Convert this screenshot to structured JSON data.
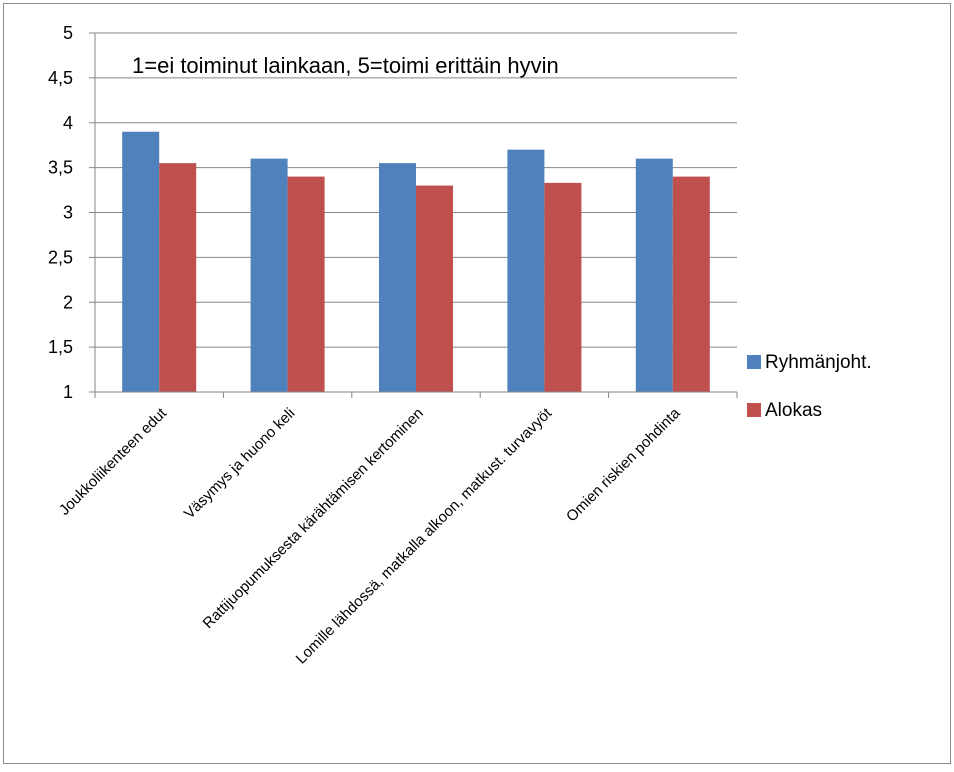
{
  "chart_data": {
    "type": "bar",
    "title": "",
    "xlabel": "",
    "ylabel": "",
    "annotation": "1=ei toiminut lainkaan, 5=toimi erittäin hyvin",
    "categories": [
      "Joukkoliikenteen edut",
      "Väsymys ja huono keli",
      "Rattijuopumuksesta kärähtämisen kertominen",
      "Lomille lähdossä, matkalla alkoon, matkust. turvavyöt",
      "Omien riskien pohdinta"
    ],
    "series": [
      {
        "name": "Ryhmänjoht.",
        "values": [
          3.9,
          3.6,
          3.55,
          3.7,
          3.6
        ],
        "color": "#4f81bd"
      },
      {
        "name": "Alokas",
        "values": [
          3.55,
          3.4,
          3.3,
          3.33,
          3.4
        ],
        "color": "#c0504d"
      }
    ],
    "ylim": [
      1,
      5
    ],
    "yticks": [
      "1",
      "1,5",
      "2",
      "2,5",
      "3",
      "3,5",
      "4",
      "4,5",
      "5"
    ],
    "ytick_values": [
      1,
      1.5,
      2,
      2.5,
      3,
      3.5,
      4,
      4.5,
      5
    ],
    "grid": true,
    "legend_position": "right"
  }
}
